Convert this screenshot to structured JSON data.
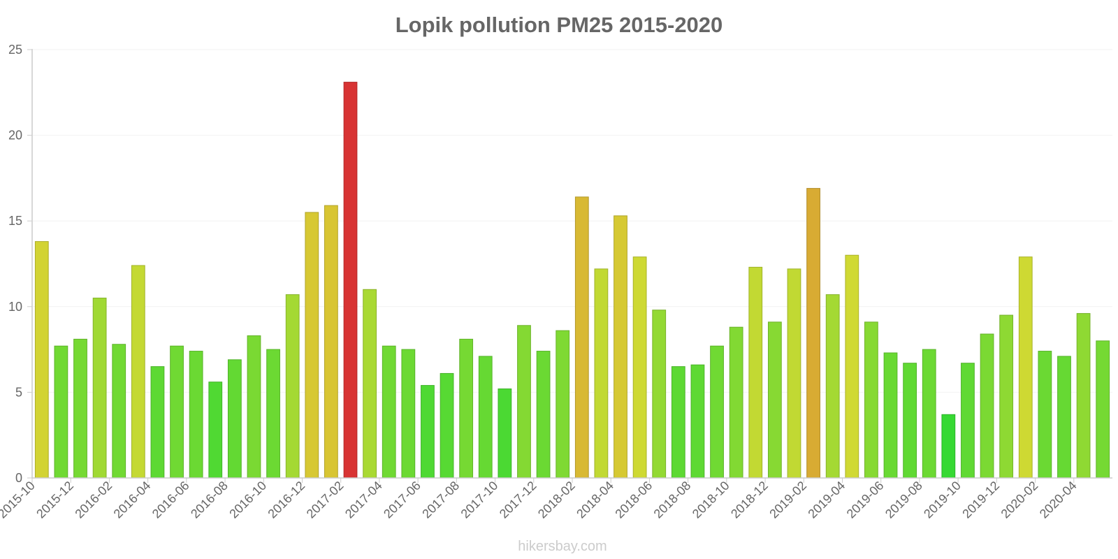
{
  "chart_data": {
    "type": "bar",
    "title": "Lopik pollution PM25 2015-2020",
    "xlabel": "",
    "ylabel": "",
    "ylim": [
      0,
      25
    ],
    "yticks": [
      0,
      5,
      10,
      15,
      20,
      25
    ],
    "grid": true,
    "categories": [
      "2015-10",
      "2015-11",
      "2015-12",
      "2016-01",
      "2016-02",
      "2016-03",
      "2016-04",
      "2016-05",
      "2016-06",
      "2016-07",
      "2016-08",
      "2016-09",
      "2016-10",
      "2016-11",
      "2016-12",
      "2017-01",
      "2017-02",
      "2017-03",
      "2017-04",
      "2017-05",
      "2017-06",
      "2017-07",
      "2017-08",
      "2017-09",
      "2017-10",
      "2017-11",
      "2017-12",
      "2018-01",
      "2018-02",
      "2018-03",
      "2018-04",
      "2018-05",
      "2018-06",
      "2018-07",
      "2018-08",
      "2018-09",
      "2018-10",
      "2018-11",
      "2018-12",
      "2019-01",
      "2019-02",
      "2019-03",
      "2019-04",
      "2019-05",
      "2019-06",
      "2019-07",
      "2019-08",
      "2019-09",
      "2019-10",
      "2019-11",
      "2019-12",
      "2020-01",
      "2020-02",
      "2020-03",
      "2020-04",
      "2020-05"
    ],
    "xtick_labels": [
      "2015-10",
      "2015-12",
      "2016-02",
      "2016-04",
      "2016-06",
      "2016-08",
      "2016-10",
      "2016-12",
      "2017-02",
      "2017-04",
      "2017-06",
      "2017-08",
      "2017-10",
      "2017-12",
      "2018-02",
      "2018-04",
      "2018-06",
      "2018-08",
      "2018-10",
      "2018-12",
      "2019-02",
      "2019-04",
      "2019-06",
      "2019-08",
      "2019-10",
      "2019-12",
      "2020-02",
      "2020-04"
    ],
    "series": [
      {
        "name": "PM25",
        "values": [
          13.8,
          7.7,
          8.1,
          10.5,
          7.8,
          12.4,
          6.5,
          7.7,
          7.4,
          5.6,
          6.9,
          8.3,
          7.5,
          10.7,
          15.5,
          15.9,
          23.1,
          11.0,
          7.7,
          7.5,
          5.4,
          6.1,
          8.1,
          7.1,
          5.2,
          8.9,
          7.4,
          8.6,
          16.4,
          12.2,
          15.3,
          12.9,
          9.8,
          6.5,
          6.6,
          7.7,
          8.8,
          12.3,
          9.1,
          12.2,
          16.9,
          10.7,
          13.0,
          9.1,
          7.3,
          6.7,
          7.5,
          3.7,
          6.7,
          8.4,
          9.5,
          12.9,
          7.4,
          7.1,
          9.6,
          8.0
        ]
      }
    ],
    "colors": {
      "title": "#666666",
      "tick": "#666666",
      "watermark": "#cccccc"
    }
  },
  "watermark": "hikersbay.com"
}
